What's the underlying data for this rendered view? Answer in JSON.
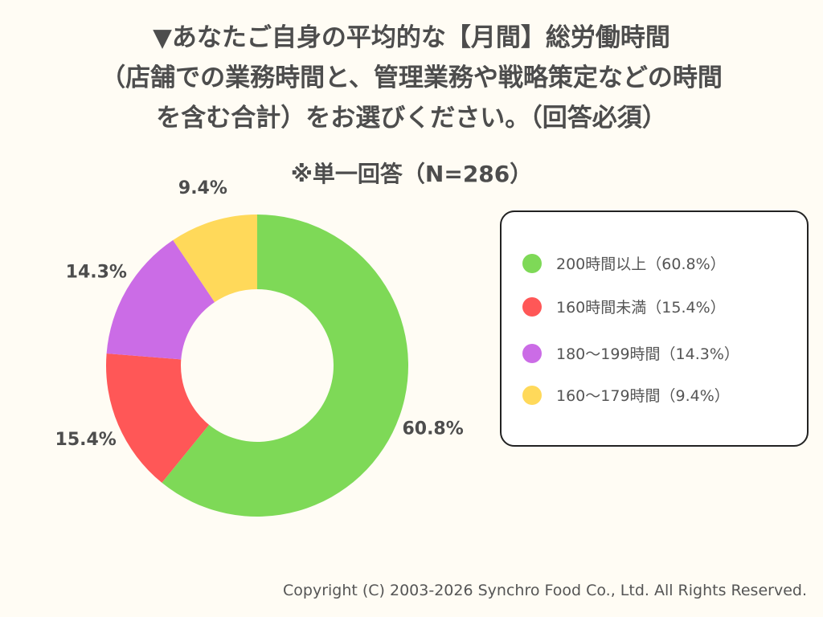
{
  "chart_data": {
    "type": "pie",
    "donut": true,
    "title_lines": [
      "▼あなたご自身の平均的な【月間】総労働時間",
      "（店舗での業務時間と、管理業務や戦略策定などの時間",
      "を含む合計）をお選びください。（回答必須）"
    ],
    "subtitle": "※単一回答（N=286）",
    "slices": [
      {
        "label": "200時間以上（60.8%）",
        "value": 60.8,
        "data_label": "60.8%",
        "color": "#7ed957"
      },
      {
        "label": "160時間未満（15.4%）",
        "value": 15.4,
        "data_label": "15.4%",
        "color": "#ff5757"
      },
      {
        "label": "180〜199時間（14.3%）",
        "value": 14.3,
        "data_label": "14.3%",
        "color": "#cb6ce6"
      },
      {
        "label": "160〜179時間（9.4%）",
        "value": 9.4,
        "data_label": "9.4%",
        "color": "#ffd95a"
      }
    ],
    "legend_position": "right"
  },
  "footer": {
    "copyright": "Copyright (C) 2003-2026  Synchro Food Co., Ltd. All Rights Reserved."
  }
}
